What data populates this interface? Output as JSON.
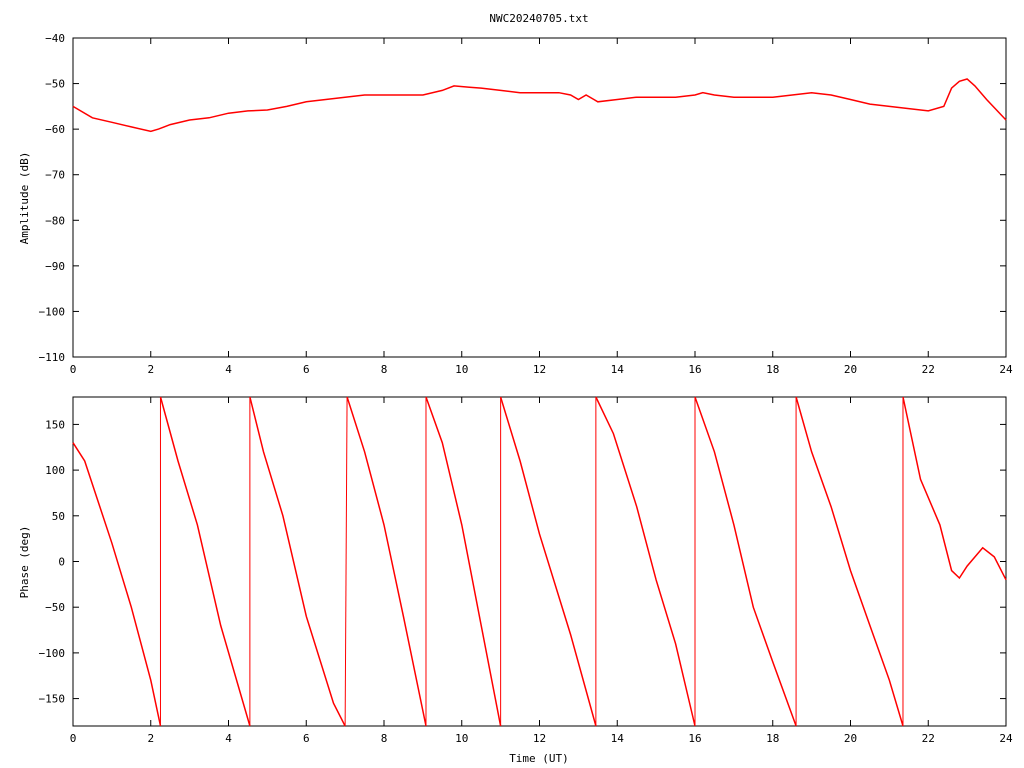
{
  "title": "NWC20240705.txt",
  "colors": {
    "series": "#ff0000",
    "axis": "#000000",
    "background": "#ffffff"
  },
  "chart_data": [
    {
      "type": "line",
      "title": "NWC20240705.txt",
      "xlabel": "",
      "ylabel": "Amplitude (dB)",
      "xlim": [
        0,
        24
      ],
      "ylim": [
        -110,
        -40
      ],
      "xticks": [
        0,
        2,
        4,
        6,
        8,
        10,
        12,
        14,
        16,
        18,
        20,
        22,
        24
      ],
      "yticks": [
        -110,
        -100,
        -90,
        -80,
        -70,
        -60,
        -50,
        -40
      ],
      "grid": false,
      "legend": "none",
      "series": [
        {
          "x": [
            0,
            0.5,
            1,
            1.5,
            2,
            2.2,
            2.5,
            3,
            3.5,
            4,
            4.5,
            5,
            5.5,
            6,
            6.5,
            7,
            7.5,
            8,
            8.5,
            9,
            9.5,
            9.8,
            10.2,
            10.5,
            11,
            11.5,
            12,
            12.5,
            12.8,
            13,
            13.2,
            13.4,
            13.5,
            14,
            14.5,
            15,
            15.5,
            16,
            16.2,
            16.5,
            17,
            17.5,
            18,
            18.5,
            19,
            19.5,
            20,
            20.5,
            21,
            21.5,
            22,
            22.4,
            22.6,
            22.8,
            23,
            23.2,
            23.5,
            24
          ],
          "y": [
            -55,
            -57.5,
            -58.5,
            -59.5,
            -60.5,
            -60,
            -59,
            -58,
            -57.5,
            -56.5,
            -56,
            -55.8,
            -55,
            -54,
            -53.5,
            -53,
            -52.5,
            -52.5,
            -52.5,
            -52.5,
            -51.5,
            -50.5,
            -50.8,
            -51,
            -51.5,
            -52,
            -52,
            -52,
            -52.5,
            -53.5,
            -52.5,
            -53.5,
            -54,
            -53.5,
            -53,
            -53,
            -53,
            -52.5,
            -52,
            -52.5,
            -53,
            -53,
            -53,
            -52.5,
            -52,
            -52.5,
            -53.5,
            -54.5,
            -55,
            -55.5,
            -56,
            -55,
            -51,
            -49.5,
            -49,
            -50.5,
            -53.5,
            -58
          ]
        }
      ]
    },
    {
      "type": "line",
      "title": "",
      "xlabel": "Time (UT)",
      "ylabel": "Phase (deg)",
      "xlim": [
        0,
        24
      ],
      "ylim": [
        -180,
        180
      ],
      "xticks": [
        0,
        2,
        4,
        6,
        8,
        10,
        12,
        14,
        16,
        18,
        20,
        22,
        24
      ],
      "yticks": [
        -150,
        -100,
        -50,
        0,
        50,
        100,
        150
      ],
      "grid": false,
      "legend": "none",
      "series": [
        {
          "segments": [
            {
              "x": [
                0,
                0.3,
                1,
                1.5,
                2,
                2.25
              ],
              "y": [
                130,
                110,
                20,
                -50,
                -130,
                -180
              ]
            },
            {
              "x": [
                2.25,
                2.7,
                3.2,
                3.8,
                4.55
              ],
              "y": [
                180,
                110,
                40,
                -70,
                -180
              ]
            },
            {
              "x": [
                4.55,
                4.9,
                5.4,
                6,
                6.7,
                7.0
              ],
              "y": [
                180,
                120,
                50,
                -60,
                -155,
                -180
              ]
            },
            {
              "x": [
                7.05,
                7.5,
                8,
                8.5,
                9.08
              ],
              "y": [
                180,
                120,
                40,
                -60,
                -180
              ]
            },
            {
              "x": [
                9.08,
                9.5,
                10,
                10.5,
                11.0
              ],
              "y": [
                180,
                130,
                40,
                -70,
                -180
              ]
            },
            {
              "x": [
                11.0,
                11.5,
                12,
                12.8,
                13.45
              ],
              "y": [
                180,
                110,
                30,
                -80,
                -180
              ]
            },
            {
              "x": [
                13.45,
                13.9,
                14.5,
                15,
                15.5,
                16.0
              ],
              "y": [
                180,
                140,
                60,
                -20,
                -90,
                -180
              ]
            },
            {
              "x": [
                16.0,
                16.5,
                17,
                17.5,
                18,
                18.6
              ],
              "y": [
                180,
                120,
                40,
                -50,
                -110,
                -180
              ]
            },
            {
              "x": [
                18.6,
                19,
                19.5,
                20,
                20.5,
                21,
                21.35
              ],
              "y": [
                180,
                120,
                60,
                -10,
                -70,
                -130,
                -180
              ]
            },
            {
              "x": [
                21.35,
                21.8,
                22.3,
                22.6,
                22.8,
                23,
                23.4,
                23.7,
                24
              ],
              "y": [
                180,
                90,
                40,
                -10,
                -18,
                -5,
                15,
                5,
                -20
              ]
            }
          ]
        }
      ]
    }
  ]
}
